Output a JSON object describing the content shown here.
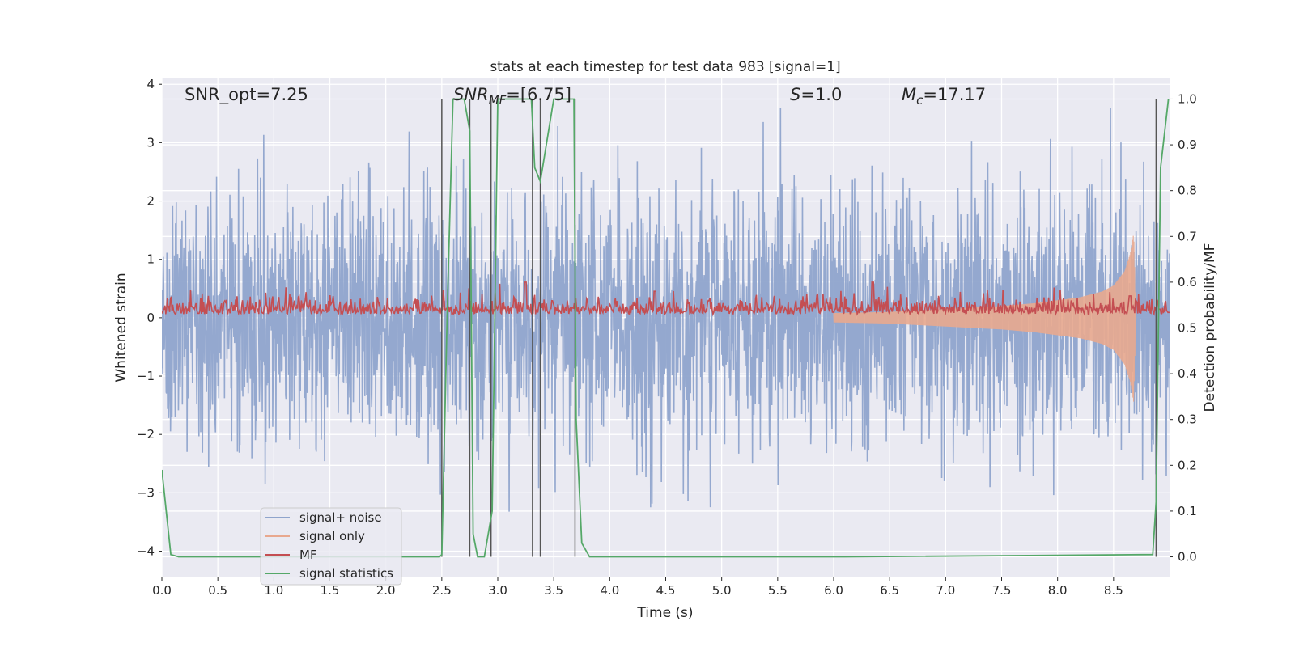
{
  "chart_data": {
    "type": "line",
    "title": "stats at each timestep for test data 983 [signal=1]",
    "xlabel": "Time (s)",
    "ylabel": "Whitened strain",
    "y2label": "Detection probability/MF",
    "xlim": [
      0.0,
      9.0
    ],
    "ylim": [
      -4.45,
      4.1
    ],
    "y2lim": [
      -0.045,
      1.045
    ],
    "xticks": [
      0.0,
      0.5,
      1.0,
      1.5,
      2.0,
      2.5,
      3.0,
      3.5,
      4.0,
      4.5,
      5.0,
      5.5,
      6.0,
      6.5,
      7.0,
      7.5,
      8.0,
      8.5
    ],
    "xtick_labels": [
      "0.0",
      "0.5",
      "1.0",
      "1.5",
      "2.0",
      "2.5",
      "3.0",
      "3.5",
      "4.0",
      "4.5",
      "5.0",
      "5.5",
      "6.0",
      "6.5",
      "7.0",
      "7.5",
      "8.0",
      "8.5"
    ],
    "yticks": [
      -4,
      -3,
      -2,
      -1,
      0,
      1,
      2,
      3,
      4
    ],
    "ytick_labels": [
      "−4",
      "−3",
      "−2",
      "−1",
      "0",
      "1",
      "2",
      "3",
      "4"
    ],
    "y2ticks": [
      0.0,
      0.1,
      0.2,
      0.3,
      0.4,
      0.5,
      0.6,
      0.7,
      0.8,
      0.9,
      1.0
    ],
    "y2tick_labels": [
      "0.0",
      "0.1",
      "0.2",
      "0.3",
      "0.4",
      "0.5",
      "0.6",
      "0.7",
      "0.8",
      "0.9",
      "1.0"
    ],
    "grid": true,
    "legend_position": "bottom-left",
    "annotations": {
      "snr_opt": "SNR_opt=7.25",
      "snr_mf_prefix": "SNR",
      "snr_mf_sub": "MF",
      "snr_mf_value": "=[6.75]",
      "s_symbol": "S",
      "s_value": "=1.0",
      "mc_symbol": "M",
      "mc_sub": "c",
      "mc_value": "=17.17"
    },
    "series": [
      {
        "name": "signal+ noise",
        "color": "#8fa4cc",
        "axis": "left",
        "description_range": [
          -3.8,
          3.6
        ]
      },
      {
        "name": "signal only",
        "color": "#e8a88e",
        "axis": "left",
        "x": [
          6.0,
          6.5,
          7.0,
          7.5,
          7.8,
          8.0,
          8.2,
          8.4,
          8.5,
          8.6,
          8.65,
          8.68,
          8.7
        ],
        "envelope": [
          0.08,
          0.1,
          0.15,
          0.2,
          0.25,
          0.3,
          0.35,
          0.45,
          0.55,
          0.8,
          1.1,
          1.45,
          0.0
        ]
      },
      {
        "name": "MF",
        "color": "#c44e52",
        "axis": "right",
        "baseline": 0.53,
        "peaks": [
          [
            3.25,
            0.6
          ],
          [
            4.4,
            0.58
          ],
          [
            6.35,
            0.6
          ],
          [
            8.65,
            0.57
          ]
        ]
      },
      {
        "name": "signal statistics",
        "color": "#55a868",
        "axis": "right",
        "x": [
          0.0,
          0.08,
          0.15,
          2.48,
          2.5,
          2.55,
          2.6,
          2.7,
          2.75,
          2.78,
          2.82,
          2.88,
          2.95,
          3.0,
          3.1,
          3.3,
          3.33,
          3.38,
          3.5,
          3.68,
          3.7,
          3.75,
          3.82,
          3.9,
          6.0,
          6.1,
          8.85,
          8.88,
          8.92,
          8.99
        ],
        "y": [
          0.19,
          0.005,
          0.0,
          0.0,
          0.005,
          0.55,
          1.0,
          1.0,
          0.93,
          0.05,
          0.0,
          0.0,
          0.1,
          1.0,
          1.0,
          1.0,
          0.85,
          0.82,
          1.0,
          1.0,
          0.3,
          0.03,
          0.0,
          0.0,
          0.0,
          0.0,
          0.005,
          0.12,
          0.85,
          1.0
        ]
      }
    ],
    "vlines": [
      2.5,
      2.75,
      2.94,
      3.31,
      3.38,
      3.69,
      8.88
    ]
  }
}
